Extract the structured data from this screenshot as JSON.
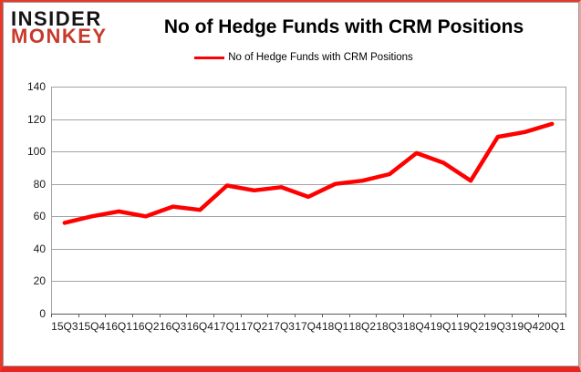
{
  "branding": {
    "line1": "INSIDER",
    "line2": "MONKEY",
    "monkey_color": "#c73b2d"
  },
  "header": {
    "title": "No of Hedge Funds with CRM Positions"
  },
  "legend": {
    "label": "No of Hedge Funds with CRM Positions",
    "swatch_color": "#ff0000"
  },
  "chart_data": {
    "type": "line",
    "title": "No of Hedge Funds with CRM Positions",
    "categories": [
      "15Q3",
      "15Q4",
      "16Q1",
      "16Q2",
      "16Q3",
      "16Q4",
      "17Q1",
      "17Q2",
      "17Q3",
      "17Q4",
      "18Q1",
      "18Q2",
      "18Q3",
      "18Q4",
      "19Q1",
      "19Q2",
      "19Q3",
      "19Q4",
      "20Q1"
    ],
    "values": [
      56,
      60,
      63,
      60,
      66,
      64,
      79,
      76,
      78,
      72,
      80,
      82,
      86,
      99,
      93,
      82,
      109,
      112,
      117
    ],
    "xlabel": "",
    "ylabel": "",
    "ylim": [
      0,
      140
    ],
    "ytick_step": 20,
    "grid": true,
    "legend_position": "top-center",
    "line_color": "#ff0000",
    "gridline_color": "#a3a3a3",
    "axis_color": "#595959"
  }
}
